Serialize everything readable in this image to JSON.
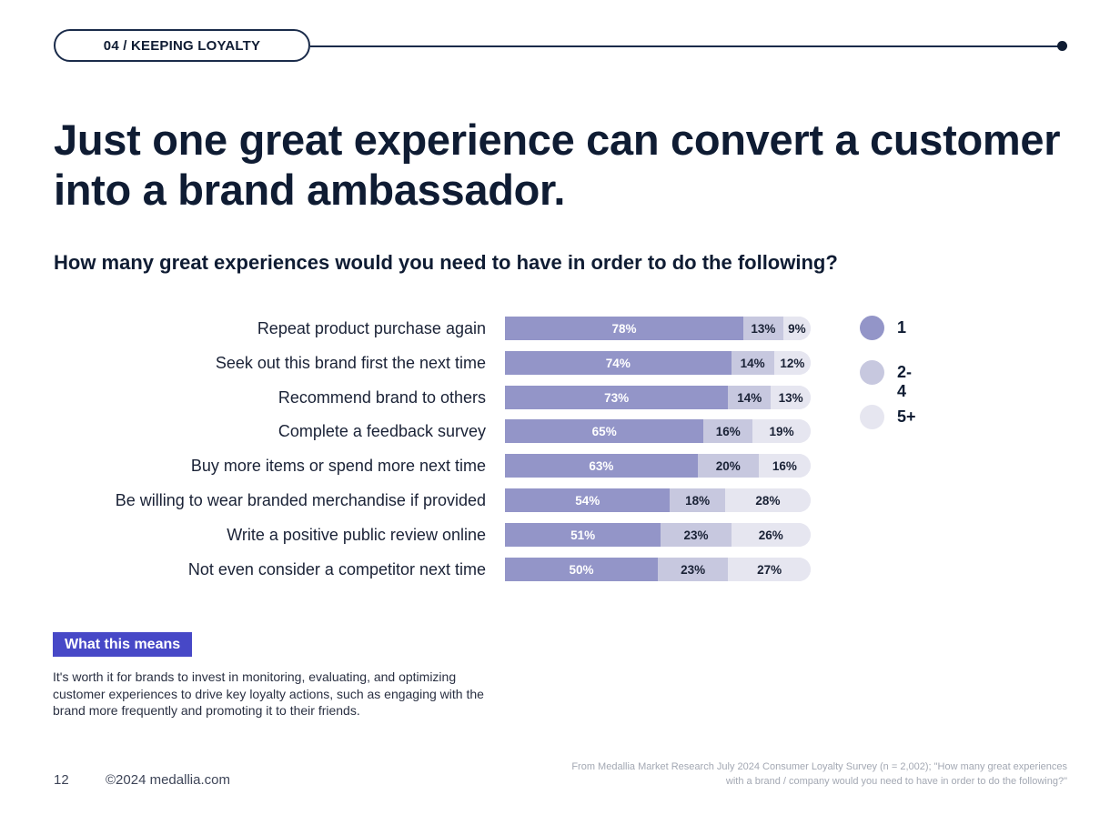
{
  "section": {
    "label": "04 / KEEPING LOYALTY"
  },
  "headline": "Just one great experience can convert a customer into a brand ambassador.",
  "question": "How many great experiences would you need to have in order to do the following?",
  "colors": {
    "s1": "#9395c8",
    "s2": "#c7c8df",
    "s3": "#e6e6f0",
    "accent": "#4748c7",
    "navy": "#0f1c33"
  },
  "chart_data": {
    "type": "bar",
    "orientation": "horizontal",
    "stacked": true,
    "categories": [
      "Repeat product purchase again",
      "Seek out this brand first the next time",
      "Recommend brand to others",
      "Complete a feedback survey",
      "Buy more items or spend more next time",
      "Be willing to wear branded merchandise if provided",
      "Write a positive public review online",
      "Not even consider a competitor next time"
    ],
    "series": [
      {
        "name": "1",
        "color": "#9395c8",
        "values": [
          78,
          74,
          73,
          65,
          63,
          54,
          51,
          50
        ]
      },
      {
        "name": "2-4",
        "color": "#c7c8df",
        "values": [
          13,
          14,
          14,
          16,
          20,
          18,
          23,
          23
        ]
      },
      {
        "name": "5+",
        "color": "#e6e6f0",
        "values": [
          9,
          12,
          13,
          19,
          16,
          28,
          26,
          27
        ]
      }
    ],
    "unit": "%",
    "xlim": [
      0,
      100
    ],
    "legend_position": "right"
  },
  "what_this_means": {
    "label": "What this means",
    "text": "It's worth it for brands to invest in monitoring, evaluating, and optimizing customer experiences to drive key loyalty actions, such as engaging with the brand more frequently and promoting it to their friends."
  },
  "footer": {
    "page_number": "12",
    "copyright": "©2024 medallia.com",
    "source": "From Medallia Market Research July 2024 Consumer Loyalty Survey (n = 2,002); \"How many great experiences with a brand / company would you need to have in order to do the following?\""
  }
}
